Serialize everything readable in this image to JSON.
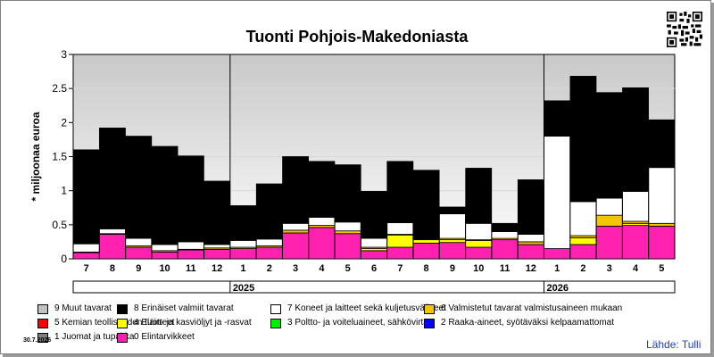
{
  "title": "Tuonti Pohjois-Makedoniasta",
  "date_stamp": "30.7.2026",
  "source": "Lähde: Tulli",
  "colors": {
    "c9": "#c0c0c0",
    "c8": "#000000",
    "c7": "#ffffff",
    "c6": "#f5c400",
    "c5": "#ff0000",
    "c4": "#ffff00",
    "c3": "#00ee00",
    "c2": "#0000ff",
    "c1": "#808080",
    "c0": "#ff1fb0"
  },
  "legend": [
    {
      "key": "c9",
      "label": "9 Muut tavarat"
    },
    {
      "key": "c8",
      "label": "8 Erinäiset valmiit tavarat"
    },
    {
      "key": "c7",
      "label": "7 Koneet ja laitteet sekä kuljetusvälineet"
    },
    {
      "key": "c6",
      "label": "6 Valmistetut tavarat valmistusaineen mukaan"
    },
    {
      "key": "c5",
      "label": "5 Kemian teollisuuden tuotteet"
    },
    {
      "key": "c4",
      "label": "4 Eläin- ja kasviöljyt ja -rasvat"
    },
    {
      "key": "c3",
      "label": "3 Poltto- ja voiteluaineet, sähkövirta"
    },
    {
      "key": "c2",
      "label": "2 Raaka-aineet, syötäväksi kelpaamattomat"
    },
    {
      "key": "c1",
      "label": "1 Juomat ja tupakka"
    },
    {
      "key": "c0",
      "label": "0 Elintarvikkeet"
    }
  ],
  "chart_data": {
    "type": "bar",
    "stacked": true,
    "title": "Tuonti Pohjois-Makedoniasta",
    "ylabel": "* miljoonaa euroa",
    "ylim": [
      0,
      3
    ],
    "yticks": [
      "0",
      "0.5",
      "1",
      "1.5",
      "2",
      "2.5",
      "3"
    ],
    "categories": [
      "7",
      "8",
      "9",
      "10",
      "11",
      "12",
      "1",
      "2",
      "3",
      "4",
      "5",
      "6",
      "7",
      "8",
      "9",
      "10",
      "11",
      "12",
      "1",
      "2",
      "3",
      "4",
      "5"
    ],
    "years": [
      {
        "label": "2025",
        "start": 6,
        "end": 17
      },
      {
        "label": "2026",
        "start": 18,
        "end": 22
      }
    ],
    "series": [
      {
        "key": "c0",
        "name": "0 Elintarvikkeet",
        "values": [
          0.09,
          0.36,
          0.17,
          0.1,
          0.13,
          0.14,
          0.15,
          0.17,
          0.38,
          0.46,
          0.37,
          0.12,
          0.17,
          0.23,
          0.24,
          0.17,
          0.28,
          0.21,
          0.15,
          0.21,
          0.48,
          0.49,
          0.48
        ]
      },
      {
        "key": "c4",
        "name": "4 Eläin- ja kasviöljyt ja -rasvat",
        "values": [
          0,
          0,
          0,
          0,
          0,
          0,
          0,
          0,
          0,
          0,
          0,
          0.03,
          0.18,
          0.05,
          0.04,
          0.1,
          0,
          0,
          0,
          0.1,
          0,
          0.03,
          0
        ]
      },
      {
        "key": "c6",
        "name": "6 Valmistetut tavarat valmistusaineen mukaan",
        "values": [
          0.01,
          0.01,
          0.02,
          0.02,
          0.01,
          0.02,
          0.02,
          0.02,
          0.04,
          0.03,
          0.04,
          0.02,
          0.01,
          0.01,
          0.02,
          0.01,
          0.02,
          0.04,
          0,
          0.03,
          0.16,
          0.03,
          0.04
        ]
      },
      {
        "key": "c7",
        "name": "7 Koneet ja laitteet sekä kuljetusvälineet",
        "values": [
          0.12,
          0.07,
          0.11,
          0.09,
          0.11,
          0.05,
          0.1,
          0.1,
          0.1,
          0.12,
          0.13,
          0.13,
          0.17,
          0.01,
          0.36,
          0.24,
          0.1,
          0.11,
          1.65,
          0.5,
          0.25,
          0.44,
          0.82
        ]
      },
      {
        "key": "c8",
        "name": "8 Erinäiset valmiit tavarat",
        "values": [
          1.38,
          1.48,
          1.5,
          1.44,
          1.26,
          0.93,
          0.51,
          0.81,
          0.98,
          0.82,
          0.84,
          0.69,
          0.9,
          1.0,
          0.1,
          0.81,
          0.12,
          0.8,
          0.52,
          1.84,
          1.55,
          1.52,
          0.7
        ]
      }
    ]
  }
}
